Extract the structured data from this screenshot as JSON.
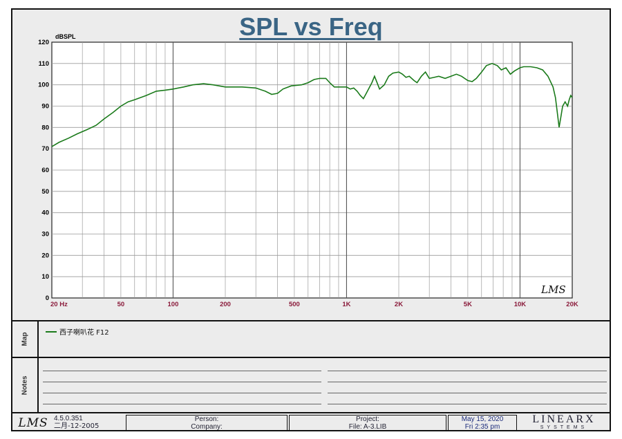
{
  "chart_data": {
    "type": "line",
    "title": "SPL vs Freq",
    "ylabel": "dBSPL",
    "xscale": "log",
    "xlim": [
      20,
      20000
    ],
    "ylim": [
      0,
      120
    ],
    "yticks": [
      0,
      10,
      20,
      30,
      40,
      50,
      60,
      70,
      80,
      90,
      100,
      110,
      120
    ],
    "xtick_labels": [
      {
        "value": 20,
        "label": "20  Hz"
      },
      {
        "value": 50,
        "label": "50"
      },
      {
        "value": 100,
        "label": "100"
      },
      {
        "value": 200,
        "label": "200"
      },
      {
        "value": 500,
        "label": "500"
      },
      {
        "value": 1000,
        "label": "1K"
      },
      {
        "value": 2000,
        "label": "2K"
      },
      {
        "value": 5000,
        "label": "5K"
      },
      {
        "value": 10000,
        "label": "10K"
      },
      {
        "value": 20000,
        "label": "20K"
      }
    ],
    "grid": true,
    "series": [
      {
        "name": "西子喇叭花 F12",
        "color": "#1a7a1a",
        "points": [
          [
            20,
            71
          ],
          [
            22,
            73
          ],
          [
            25,
            75
          ],
          [
            28,
            77
          ],
          [
            32,
            79
          ],
          [
            36,
            81
          ],
          [
            40,
            84
          ],
          [
            45,
            87
          ],
          [
            50,
            90
          ],
          [
            55,
            92
          ],
          [
            60,
            93
          ],
          [
            70,
            95
          ],
          [
            80,
            97
          ],
          [
            90,
            97.5
          ],
          [
            100,
            98
          ],
          [
            115,
            99
          ],
          [
            130,
            100
          ],
          [
            150,
            100.5
          ],
          [
            170,
            100
          ],
          [
            200,
            99
          ],
          [
            250,
            99
          ],
          [
            300,
            98.5
          ],
          [
            340,
            97
          ],
          [
            370,
            95.5
          ],
          [
            400,
            96
          ],
          [
            430,
            98
          ],
          [
            480,
            99.5
          ],
          [
            550,
            100
          ],
          [
            600,
            101
          ],
          [
            650,
            102.5
          ],
          [
            700,
            103
          ],
          [
            760,
            103
          ],
          [
            800,
            101
          ],
          [
            850,
            99
          ],
          [
            920,
            99
          ],
          [
            1000,
            99
          ],
          [
            1050,
            98
          ],
          [
            1100,
            98.5
          ],
          [
            1150,
            97
          ],
          [
            1200,
            95
          ],
          [
            1250,
            93.5
          ],
          [
            1300,
            96
          ],
          [
            1400,
            101
          ],
          [
            1450,
            104
          ],
          [
            1500,
            101
          ],
          [
            1550,
            98
          ],
          [
            1650,
            100
          ],
          [
            1750,
            104
          ],
          [
            1850,
            105.5
          ],
          [
            2000,
            106
          ],
          [
            2100,
            105
          ],
          [
            2200,
            103.5
          ],
          [
            2300,
            104
          ],
          [
            2450,
            102
          ],
          [
            2550,
            101
          ],
          [
            2700,
            104
          ],
          [
            2850,
            106
          ],
          [
            3000,
            103
          ],
          [
            3200,
            103.5
          ],
          [
            3400,
            104
          ],
          [
            3700,
            103
          ],
          [
            4000,
            104
          ],
          [
            4300,
            105
          ],
          [
            4600,
            104
          ],
          [
            5000,
            102
          ],
          [
            5300,
            101.5
          ],
          [
            5600,
            103
          ],
          [
            6000,
            106
          ],
          [
            6400,
            109
          ],
          [
            6900,
            110
          ],
          [
            7400,
            109
          ],
          [
            7800,
            107
          ],
          [
            8300,
            108
          ],
          [
            8800,
            105
          ],
          [
            9300,
            106.5
          ],
          [
            10000,
            108
          ],
          [
            10500,
            108.5
          ],
          [
            11500,
            108.5
          ],
          [
            12500,
            108
          ],
          [
            13500,
            107
          ],
          [
            14500,
            104
          ],
          [
            15500,
            99
          ],
          [
            16000,
            94
          ],
          [
            16400,
            87
          ],
          [
            16800,
            80
          ],
          [
            17200,
            85
          ],
          [
            17600,
            90
          ],
          [
            18200,
            92
          ],
          [
            18800,
            90
          ],
          [
            19200,
            93
          ],
          [
            19600,
            95
          ],
          [
            20000,
            94
          ]
        ]
      }
    ]
  },
  "logo": {
    "text": "LMS"
  },
  "map": {
    "label": "Map"
  },
  "notes": {
    "label": "Notes"
  },
  "footer": {
    "version": "4.5.0.351",
    "build_date": "二月-12-2005",
    "person_label": "Person:",
    "company_label": "Company:",
    "project_label": "Project:",
    "file_label": "File: A-3.LIB",
    "date": "May 15, 2020",
    "time": "Fri  2:35 pm",
    "brand": "LINEARX",
    "brand_sub": "SYSTEMS"
  }
}
